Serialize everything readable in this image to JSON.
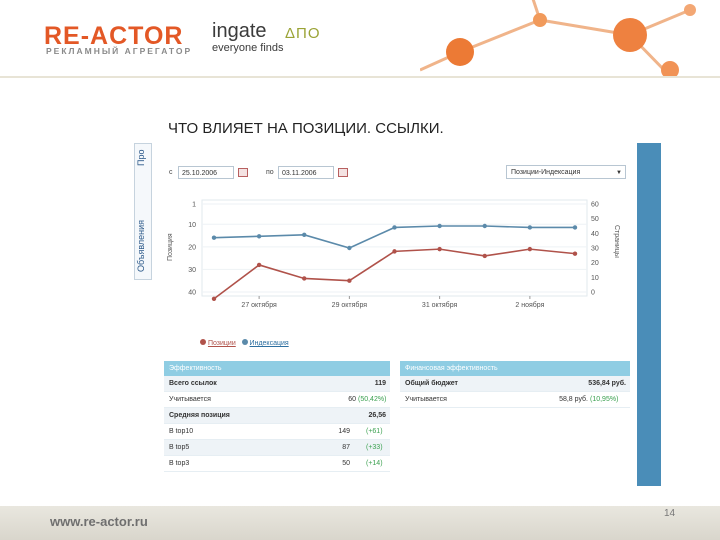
{
  "header": {
    "logo_main": "RE-ACTOR",
    "logo_sub": "РЕКЛАМНЫЙ АГРЕГАТОР",
    "partner_name": "ingate",
    "partner_tagline": "everyone finds",
    "partner_marks": "ΔΠΟ"
  },
  "slide": {
    "title": "ЧТО ВЛИЯЕТ НА ПОЗИЦИИ. ССЫЛКИ.",
    "page_number": "14"
  },
  "footer": {
    "url": "www.re-actor.ru"
  },
  "screenshot": {
    "side_tabs": [
      "Объявления",
      "Про"
    ],
    "date_from_label": "с",
    "date_from": "25.10.2006",
    "date_to_label": "по",
    "date_to": "03.11.2006",
    "metric_select": "Позиции-Индексация",
    "legend": {
      "positions": "Позиции",
      "indexation": "Индексация"
    },
    "left_panel": {
      "header": "Эффективность",
      "rows": [
        {
          "label": "Всего ссылок",
          "value": "119",
          "delta": ""
        },
        {
          "label": "Учитывается",
          "value": "60",
          "delta": "(50,42%)"
        },
        {
          "label": "Средняя позиция",
          "value": "26,56",
          "delta": ""
        },
        {
          "label": "В top10",
          "value": "149",
          "delta": "(+61)"
        },
        {
          "label": "В top5",
          "value": "87",
          "delta": "(+33)"
        },
        {
          "label": "В top3",
          "value": "50",
          "delta": "(+14)"
        }
      ]
    },
    "right_panel": {
      "header": "Финансовая эффективность",
      "rows": [
        {
          "label": "Общий бюджет",
          "value": "536,84 руб.",
          "delta": ""
        },
        {
          "label": "Учитывается",
          "value": "58,8 руб.",
          "delta": "(10,95%)"
        }
      ]
    }
  },
  "chart_data": {
    "type": "line",
    "x_tick_labels": [
      "27 октября",
      "29 октября",
      "31 октября",
      "2 ноября"
    ],
    "y_left_ticks": [
      1,
      10,
      20,
      30,
      40
    ],
    "y_right_ticks": [
      60,
      50,
      40,
      30,
      20,
      10,
      0
    ],
    "y_left_range": [
      1,
      40
    ],
    "y_right_range": [
      0,
      60
    ],
    "y_left_label": "Позиция",
    "y_right_label": "Страницы",
    "legend_position": "bottom-left",
    "series": [
      {
        "name": "Позиции",
        "color": "#b0524a",
        "axis": "left",
        "values": [
          43,
          28,
          34,
          35,
          22,
          21,
          24,
          21,
          23
        ]
      },
      {
        "name": "Индексация",
        "color": "#5b8aaa",
        "axis": "right",
        "values": [
          37,
          38,
          39,
          30,
          44,
          45,
          45,
          44,
          44
        ]
      }
    ]
  }
}
